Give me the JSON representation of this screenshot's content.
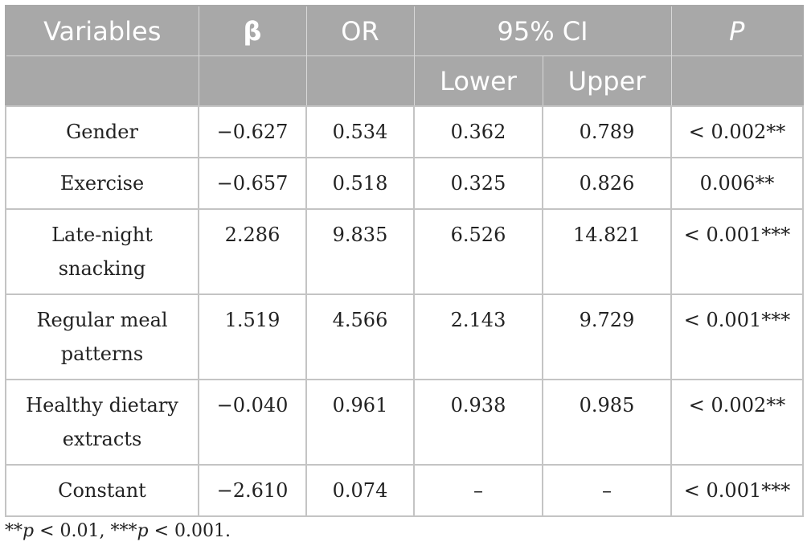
{
  "table": {
    "headers": {
      "variables": "Variables",
      "beta": "β",
      "or": "OR",
      "ci": "95% CI",
      "p": "P",
      "lower": "Lower",
      "upper": "Upper"
    },
    "rows": [
      {
        "variable": "Gender",
        "beta": "−0.627",
        "or": "0.534",
        "lower": "0.362",
        "upper": "0.789",
        "p": "< 0.002**"
      },
      {
        "variable": "Exercise",
        "beta": "−0.657",
        "or": "0.518",
        "lower": "0.325",
        "upper": "0.826",
        "p": "0.006**"
      },
      {
        "variable": "Late-night snacking",
        "beta": "2.286",
        "or": "9.835",
        "lower": "6.526",
        "upper": "14.821",
        "p": "< 0.001***"
      },
      {
        "variable": "Regular meal patterns",
        "beta": "1.519",
        "or": "4.566",
        "lower": "2.143",
        "upper": "9.729",
        "p": "< 0.001***"
      },
      {
        "variable": "Healthy dietary extracts",
        "beta": "−0.040",
        "or": "0.961",
        "lower": "0.938",
        "upper": "0.985",
        "p": "< 0.002**"
      },
      {
        "variable": "Constant",
        "beta": "−2.610",
        "or": "0.074",
        "lower": "–",
        "upper": "–",
        "p": "< 0.001***"
      }
    ]
  },
  "footnote": {
    "stars2": "**",
    "p1": "p",
    "text1": " < 0.01, ",
    "stars3": "***",
    "p2": "p",
    "text2": " < 0.001."
  }
}
